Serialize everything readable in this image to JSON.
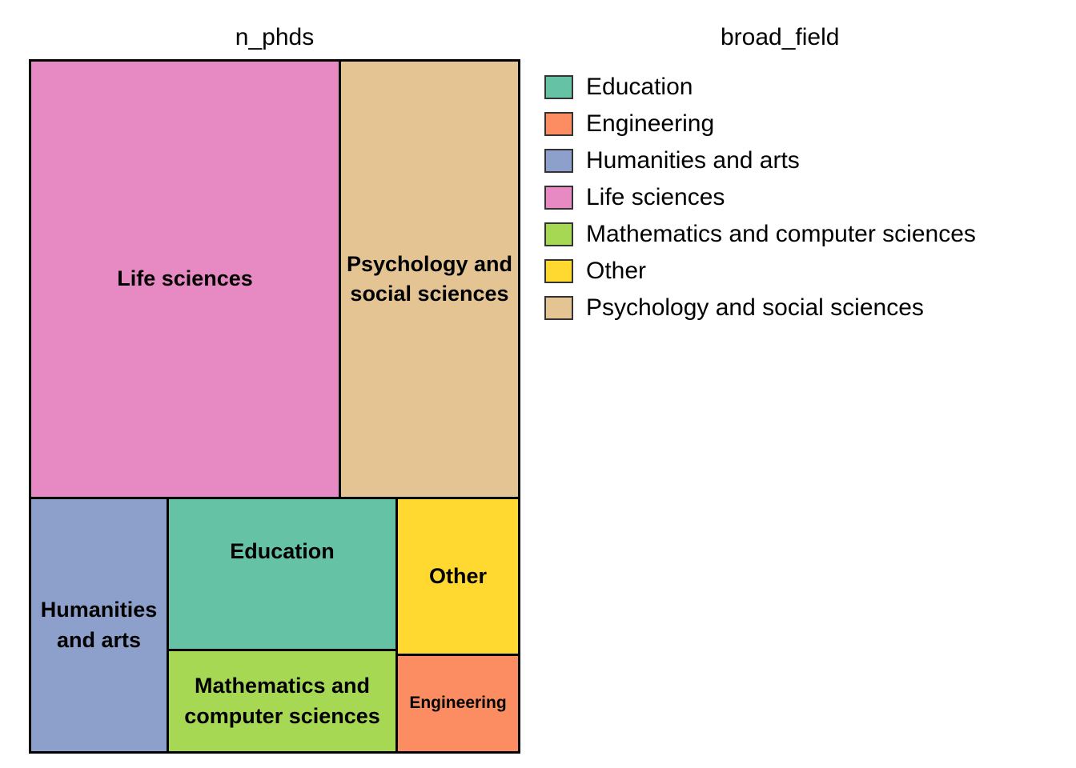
{
  "chart_data": {
    "type": "treemap",
    "title": "n_phds",
    "legend": {
      "title": "broad_field",
      "placement": "right",
      "entries": [
        {
          "label": "Education",
          "color": "#66C2A5"
        },
        {
          "label": "Engineering",
          "color": "#FC8D62"
        },
        {
          "label": "Humanities and arts",
          "color": "#8DA0CB"
        },
        {
          "label": "Life sciences",
          "color": "#E78AC3"
        },
        {
          "label": "Mathematics and computer sciences",
          "color": "#A6D854"
        },
        {
          "label": "Other",
          "color": "#FFD92F"
        },
        {
          "label": "Psychology and social sciences",
          "color": "#E5C494"
        }
      ]
    },
    "series": [
      {
        "name": "Life sciences",
        "lines": [
          "Life sciences"
        ],
        "color": "#E78AC3",
        "value": 0.405
      },
      {
        "name": "Psychology and social sciences",
        "lines": [
          "Psychology and",
          "social sciences"
        ],
        "color": "#E5C494",
        "value": 0.226
      },
      {
        "name": "Humanities and arts",
        "lines": [
          "Humanities",
          "and arts"
        ],
        "color": "#8DA0CB",
        "value": 0.102
      },
      {
        "name": "Education",
        "lines": [
          "Education"
        ],
        "color": "#66C2A5",
        "value": 0.104
      },
      {
        "name": "Mathematics and computer sciences",
        "lines": [
          "Mathematics and",
          "computer sciences"
        ],
        "color": "#A6D854",
        "value": 0.071
      },
      {
        "name": "Other",
        "lines": [
          "Other"
        ],
        "color": "#FFD92F",
        "value": 0.052
      },
      {
        "name": "Engineering",
        "lines": [
          "Engineering"
        ],
        "color": "#FC8D62",
        "value": 0.038
      }
    ]
  }
}
